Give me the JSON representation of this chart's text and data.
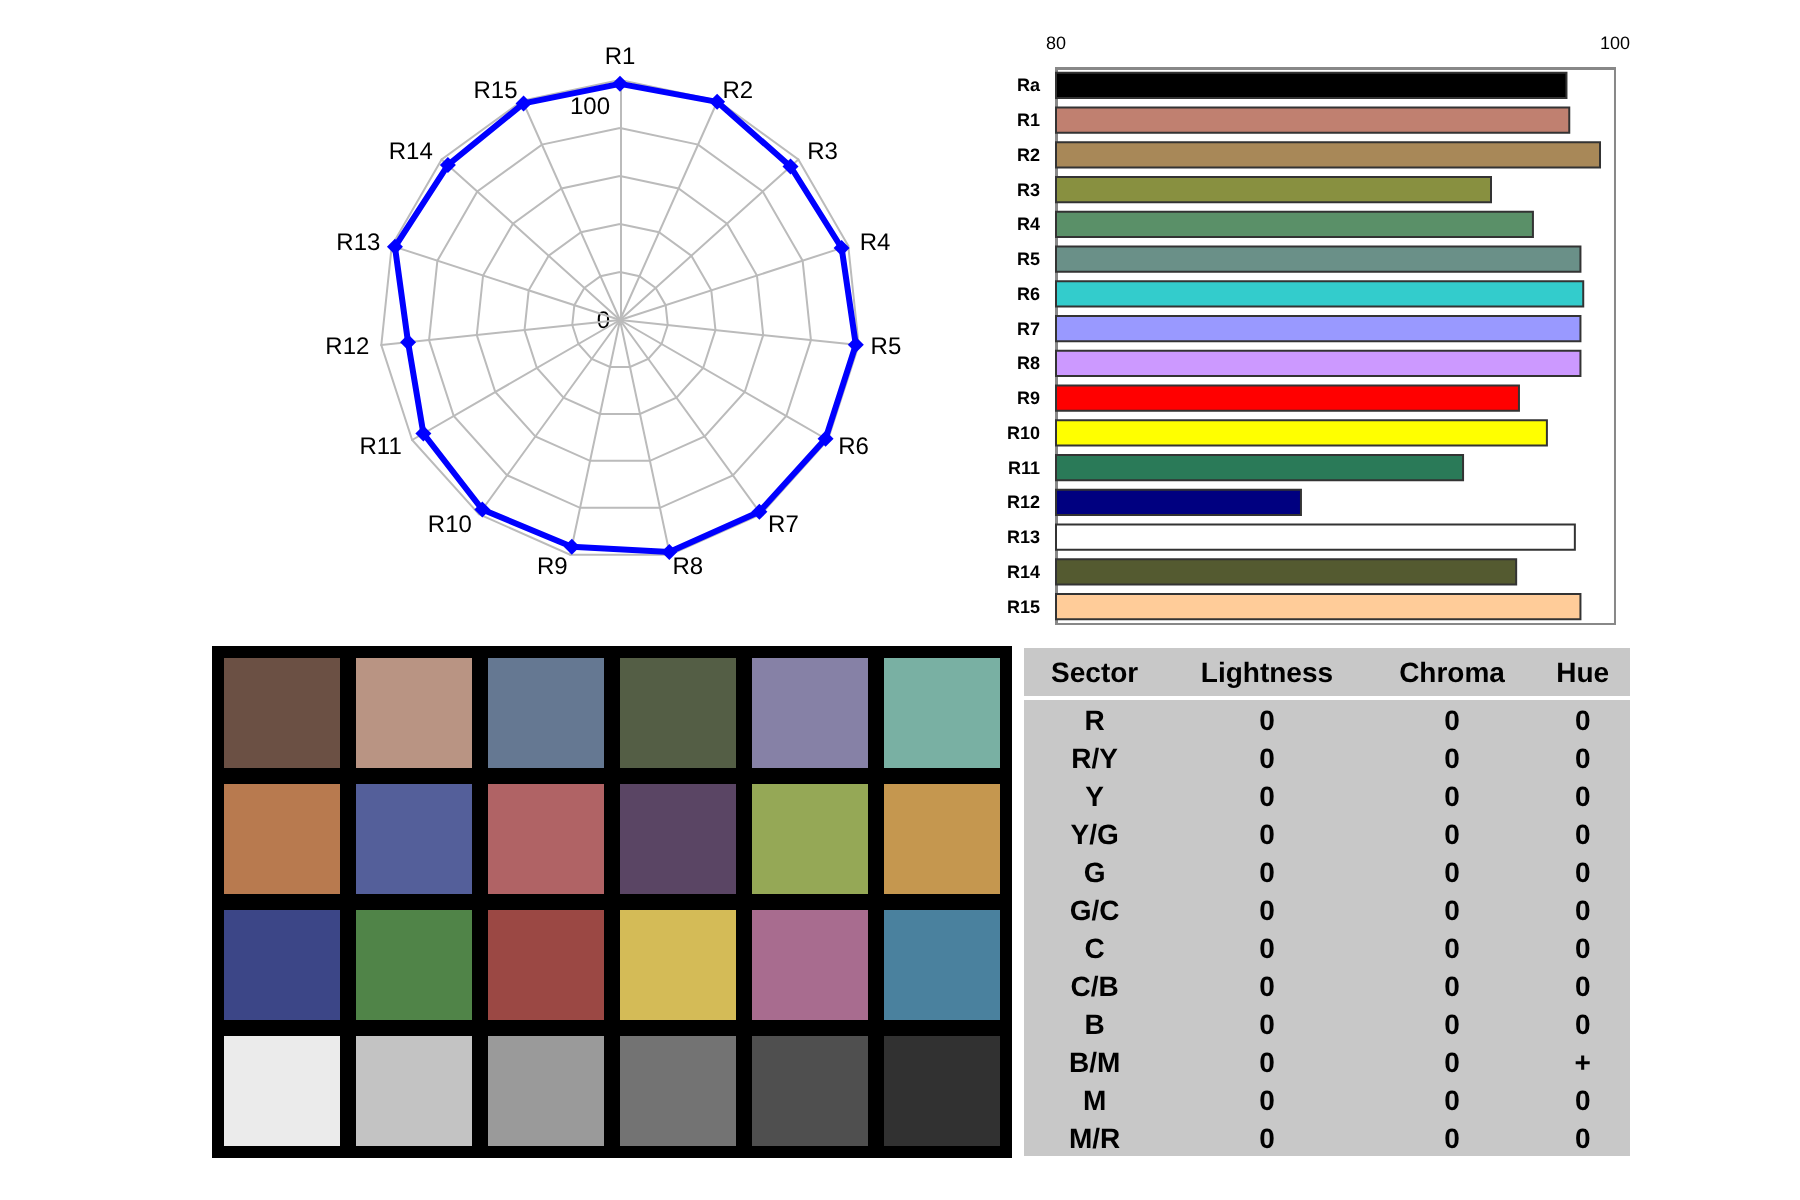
{
  "chart_data": [
    {
      "type": "radar",
      "categories": [
        "R1",
        "R2",
        "R3",
        "R4",
        "R5",
        "R6",
        "R7",
        "R8",
        "R9",
        "R10",
        "R11",
        "R12",
        "R13",
        "R14",
        "R15"
      ],
      "series": [
        {
          "color": "#0000ff",
          "values": [
            98.4,
            99.5,
            95.6,
            97.1,
            98.8,
            98.9,
            98.8,
            98.8,
            96.6,
            97.6,
            94.6,
            88.8,
            98.6,
            96.5,
            98.8
          ]
        }
      ],
      "ylim": [
        0,
        100
      ],
      "yticks": [
        0,
        100
      ],
      "grid": true,
      "marker": "diamond"
    },
    {
      "type": "bar",
      "orientation": "horizontal",
      "categories": [
        "Ra",
        "R1",
        "R2",
        "R3",
        "R4",
        "R5",
        "R6",
        "R7",
        "R8",
        "R9",
        "R10",
        "R11",
        "R12",
        "R13",
        "R14",
        "R15"
      ],
      "values": [
        98.3,
        98.4,
        99.5,
        95.6,
        97.1,
        98.8,
        98.9,
        98.8,
        98.8,
        96.6,
        97.6,
        94.6,
        88.8,
        98.6,
        96.5,
        98.8
      ],
      "colors": [
        "#000000",
        "#c08070",
        "#a88858",
        "#889040",
        "#5a9068",
        "#6a9088",
        "#33cccc",
        "#9999ff",
        "#cc99ff",
        "#ff0000",
        "#ffff00",
        "#2a7a58",
        "#000080",
        "#ffffff",
        "#545a30",
        "#ffcc99"
      ],
      "xlim": [
        80,
        100
      ],
      "xticks": [
        80,
        100
      ]
    },
    {
      "type": "other",
      "ylabel": "Sector",
      "categories": [
        "Lightness",
        "Chroma",
        "Hue"
      ],
      "y_categories": [
        "R",
        "R/Y",
        "Y",
        "Y/G",
        "G",
        "G/C",
        "C",
        "C/B",
        "B",
        "B/M",
        "M",
        "M/R"
      ],
      "cell_labels": [
        [
          "0",
          "0",
          "0"
        ],
        [
          "0",
          "0",
          "0"
        ],
        [
          "0",
          "0",
          "0"
        ],
        [
          "0",
          "0",
          "0"
        ],
        [
          "0",
          "0",
          "0"
        ],
        [
          "0",
          "0",
          "0"
        ],
        [
          "0",
          "0",
          "0"
        ],
        [
          "0",
          "0",
          "0"
        ],
        [
          "0",
          "0",
          "0"
        ],
        [
          "0",
          "0",
          "+"
        ],
        [
          "0",
          "0",
          "0"
        ],
        [
          "0",
          "0",
          "0"
        ]
      ]
    }
  ]
}
